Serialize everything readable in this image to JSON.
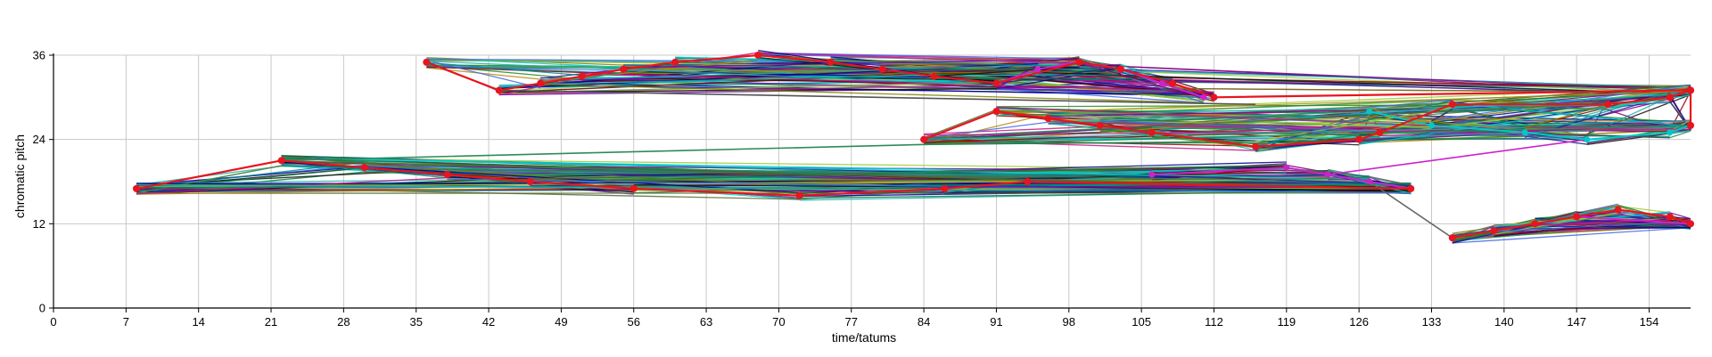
{
  "chart_data": {
    "type": "line",
    "title": "",
    "xlabel": "time/tatums",
    "ylabel": "chromatic pitch",
    "xlim": [
      0,
      158
    ],
    "ylim": [
      0,
      36
    ],
    "x_ticks": [
      0,
      7,
      14,
      21,
      28,
      35,
      42,
      49,
      56,
      63,
      70,
      77,
      84,
      91,
      98,
      105,
      112,
      119,
      126,
      133,
      140,
      147,
      154
    ],
    "y_ticks": [
      0,
      12,
      24,
      36
    ],
    "grid": true,
    "legend": "none",
    "colors": {
      "grid": "#c8c8c8",
      "axis": "#000000",
      "highlight": "#e8141e",
      "palette": [
        "#1f1f8f",
        "#0b7a3e",
        "#111111",
        "#6a0dad",
        "#008b8b",
        "#8b0000",
        "#228b22",
        "#4169e1",
        "#c71585",
        "#b8860b",
        "#2e8b57",
        "#00008b",
        "#808000",
        "#556b2f",
        "#800080",
        "#20b2aa",
        "#00ced1",
        "#9acd32"
      ]
    },
    "note_clusters": [
      {
        "region": "low",
        "main_path": [
          [
            8,
            17
          ],
          [
            22,
            21
          ],
          [
            30,
            20
          ],
          [
            38,
            19
          ],
          [
            46,
            18
          ],
          [
            56,
            17
          ],
          [
            72,
            16
          ],
          [
            86,
            17
          ],
          [
            94,
            18
          ],
          [
            131,
            17
          ]
        ],
        "secondary_path": [
          [
            106,
            19
          ],
          [
            119,
            20
          ],
          [
            123,
            19
          ],
          [
            127,
            18
          ],
          [
            131,
            17
          ]
        ],
        "secondary_color": "#cc22cc"
      },
      {
        "region": "high",
        "main_path": [
          [
            36,
            35
          ],
          [
            43,
            31
          ],
          [
            47,
            32
          ],
          [
            51,
            33
          ],
          [
            55,
            34
          ],
          [
            60,
            35
          ],
          [
            68,
            36
          ],
          [
            75,
            35
          ],
          [
            80,
            34
          ],
          [
            85,
            33
          ],
          [
            91,
            32
          ],
          [
            99,
            35
          ],
          [
            103,
            34
          ],
          [
            108,
            32
          ],
          [
            112,
            30
          ],
          [
            158,
            31
          ]
        ],
        "secondary_path": [
          [
            85,
            33
          ],
          [
            91,
            32
          ],
          [
            95,
            34
          ],
          [
            99,
            35
          ],
          [
            103,
            34
          ],
          [
            107,
            32
          ],
          [
            111,
            30
          ]
        ],
        "secondary_color": "#d020d0"
      },
      {
        "region": "middle",
        "main_path": [
          [
            84,
            24
          ],
          [
            91,
            28
          ],
          [
            96,
            27
          ],
          [
            101,
            26
          ],
          [
            106,
            25
          ],
          [
            116,
            23
          ],
          [
            126,
            24
          ],
          [
            128,
            25
          ],
          [
            135,
            29
          ],
          [
            150,
            29
          ],
          [
            156,
            30
          ],
          [
            158,
            31
          ],
          [
            158,
            26
          ]
        ],
        "secondary_path": [
          [
            127,
            28
          ],
          [
            133,
            26
          ],
          [
            142,
            25
          ],
          [
            148,
            24
          ],
          [
            156,
            25
          ],
          [
            158,
            26
          ]
        ],
        "secondary_color": "#00c8c8"
      },
      {
        "region": "bottom-right",
        "main_path": [
          [
            135,
            10
          ],
          [
            139,
            11
          ],
          [
            143,
            12
          ],
          [
            147,
            13
          ],
          [
            151,
            14
          ],
          [
            156,
            13
          ],
          [
            158,
            12
          ]
        ],
        "secondary_path": [
          [
            139,
            11
          ],
          [
            143,
            12
          ],
          [
            147,
            13
          ],
          [
            158,
            12
          ]
        ],
        "secondary_color": "#cc22cc"
      }
    ],
    "bridges": [
      {
        "from": [
          123,
          19
        ],
        "to": [
          148,
          24
        ],
        "color": "#cc22cc"
      },
      {
        "from": [
          127,
          18
        ],
        "to": [
          135,
          10
        ],
        "color": "#666666"
      },
      {
        "from": [
          22,
          21
        ],
        "to": [
          158,
          26
        ],
        "color": "#2e8b57"
      },
      {
        "from": [
          43,
          31
        ],
        "to": [
          116,
          29
        ],
        "color": "#555555"
      }
    ]
  }
}
